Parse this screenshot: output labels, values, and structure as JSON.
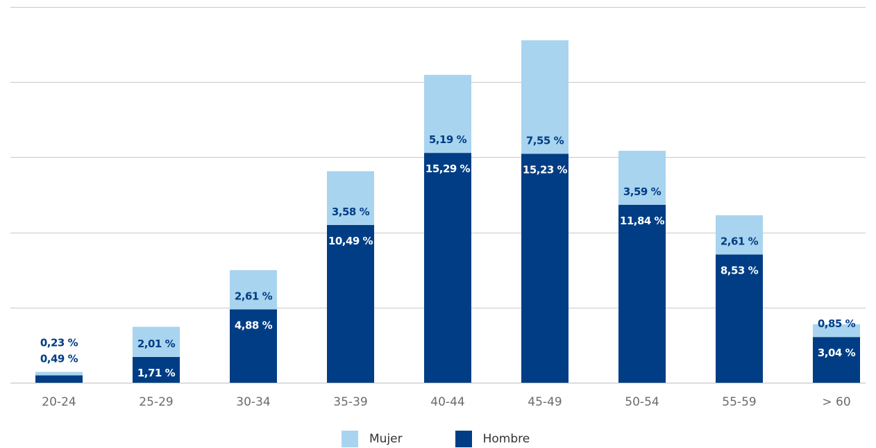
{
  "chart_data": {
    "type": "bar",
    "stacked": true,
    "categories": [
      "20-24",
      "25-29",
      "30-34",
      "35-39",
      "40-44",
      "45-49",
      "50-54",
      "55-59",
      "> 60"
    ],
    "series": [
      {
        "name": "Hombre",
        "color": "#003D84",
        "values": [
          0.49,
          1.71,
          4.88,
          10.49,
          15.29,
          15.23,
          11.84,
          8.53,
          3.04
        ],
        "labels": [
          "0,49 %",
          "1,71 %",
          "4,88 %",
          "10,49 %",
          "15,29 %",
          "15,23 %",
          "11,84 %",
          "8,53 %",
          "3,04 %"
        ]
      },
      {
        "name": "Mujer",
        "color": "#A8D4EF",
        "values": [
          0.23,
          2.01,
          2.61,
          3.58,
          5.19,
          7.55,
          3.59,
          2.61,
          0.85
        ],
        "labels": [
          "0,23 %",
          "2,01 %",
          "2,61 %",
          "3,58 %",
          "5,19 %",
          "7,55 %",
          "3,59 %",
          "2,61 %",
          "0,85 %"
        ]
      }
    ],
    "ylim": [
      0,
      25
    ],
    "grid": true,
    "legend_position": "bottom",
    "title": "",
    "xlabel": "",
    "ylabel": ""
  },
  "legend": [
    {
      "label": "Mujer",
      "color": "#A8D4EF"
    },
    {
      "label": "Hombre",
      "color": "#003D84"
    }
  ]
}
